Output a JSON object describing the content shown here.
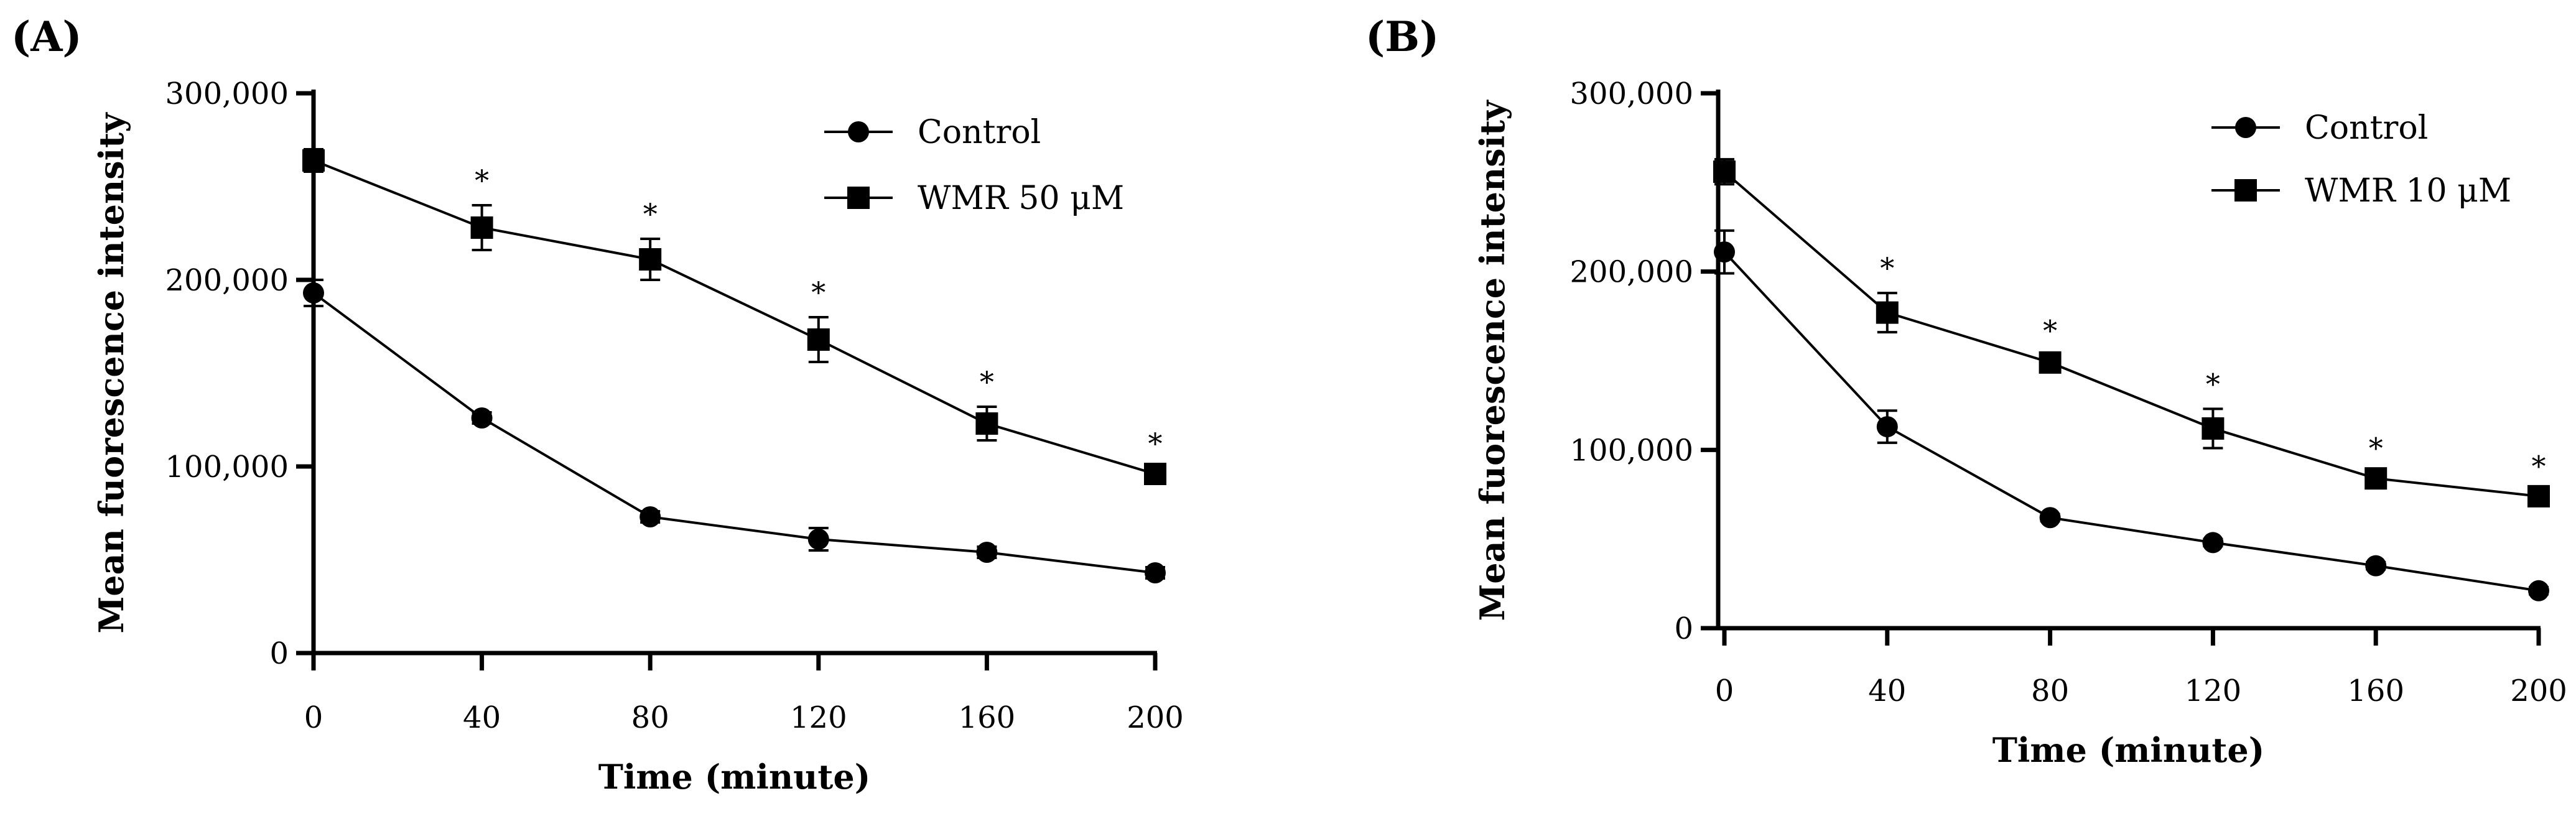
{
  "chart_data": [
    {
      "panel_label": "(A)",
      "type": "line",
      "xlabel": "Time (minute)",
      "ylabel": "Mean fuorescence intensity",
      "x": [
        0,
        40,
        80,
        120,
        160,
        200
      ],
      "xlim": [
        0,
        200
      ],
      "ylim": [
        0,
        300000
      ],
      "xticks": [
        "0",
        "40",
        "80",
        "120",
        "160",
        "200"
      ],
      "yticks": [
        {
          "value": 0,
          "label": "0"
        },
        {
          "value": 100000,
          "label": "100,000"
        },
        {
          "value": 200000,
          "label": "200,000"
        },
        {
          "value": 300000,
          "label": "300,000"
        }
      ],
      "legend_position": "top-right",
      "series": [
        {
          "name": "Control",
          "marker": "circle",
          "values": [
            193000,
            126000,
            73000,
            61000,
            54000,
            43000
          ],
          "errors": [
            7000,
            3000,
            3000,
            6000,
            3000,
            3000
          ]
        },
        {
          "name": "WMR 50 μM",
          "marker": "square",
          "values": [
            264000,
            228000,
            211000,
            168000,
            123000,
            96000
          ],
          "errors": [
            6000,
            12000,
            11000,
            12000,
            9000,
            3000
          ]
        }
      ],
      "significance": [
        {
          "x": 40,
          "label": "*"
        },
        {
          "x": 80,
          "label": "*"
        },
        {
          "x": 120,
          "label": "*"
        },
        {
          "x": 160,
          "label": "*"
        },
        {
          "x": 200,
          "label": "*"
        }
      ]
    },
    {
      "panel_label": "(B)",
      "type": "line",
      "xlabel": "Time (minute)",
      "ylabel": "Mean fuorescence intensity",
      "x": [
        0,
        40,
        80,
        120,
        160,
        200
      ],
      "xlim": [
        0,
        200
      ],
      "ylim": [
        0,
        300000
      ],
      "xticks": [
        "0",
        "40",
        "80",
        "120",
        "160",
        "200"
      ],
      "yticks": [
        {
          "value": 0,
          "label": "0"
        },
        {
          "value": 100000,
          "label": "100,000"
        },
        {
          "value": 200000,
          "label": "200,000"
        },
        {
          "value": 300000,
          "label": "300,000"
        }
      ],
      "legend_position": "top-right",
      "series": [
        {
          "name": "Control",
          "marker": "circle",
          "values": [
            211000,
            113000,
            62000,
            48000,
            35000,
            21000
          ],
          "errors": [
            12000,
            9000,
            2000,
            2000,
            2000,
            2000
          ]
        },
        {
          "name": "WMR 10 μM",
          "marker": "square",
          "values": [
            256000,
            177000,
            149000,
            112000,
            84000,
            74000
          ],
          "errors": [
            7000,
            11000,
            4000,
            11000,
            3000,
            3000
          ]
        }
      ],
      "significance": [
        {
          "x": 40,
          "label": "*"
        },
        {
          "x": 80,
          "label": "*"
        },
        {
          "x": 120,
          "label": "*"
        },
        {
          "x": 160,
          "label": "*"
        },
        {
          "x": 200,
          "label": "*"
        }
      ]
    }
  ]
}
